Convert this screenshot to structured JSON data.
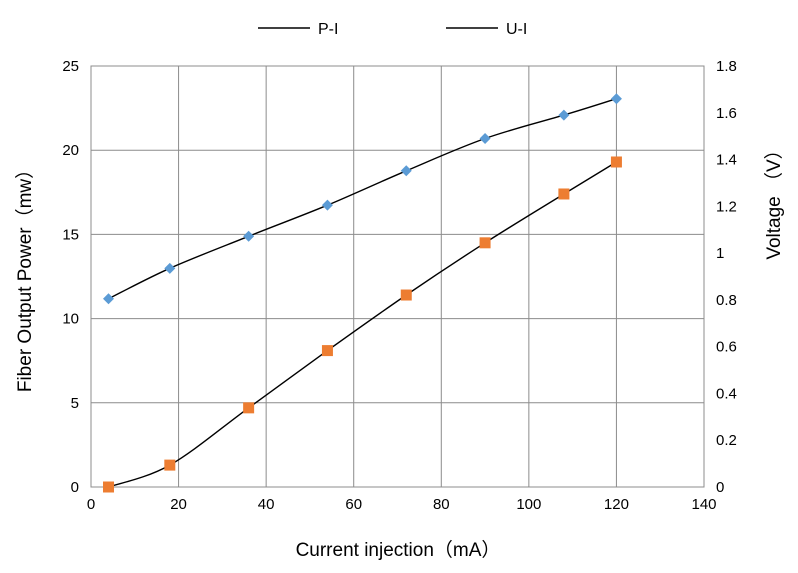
{
  "chart_data": {
    "type": "scatter",
    "title": "",
    "xlabel": "Current injection（mA）",
    "ylabel_left": "Fiber Output Power（mw）",
    "ylabel_right": "Voltage （V）",
    "xlim": [
      0,
      140
    ],
    "ylim_left": [
      0,
      25
    ],
    "ylim_right": [
      0,
      1.8
    ],
    "x_ticks": [
      "0",
      "20",
      "40",
      "60",
      "80",
      "100",
      "120",
      "140"
    ],
    "y_left_ticks": [
      "0",
      "5",
      "10",
      "15",
      "20",
      "25"
    ],
    "y_right_ticks": [
      "0",
      "0.2",
      "0.4",
      "0.6",
      "0.8",
      "1",
      "1.2",
      "1.4",
      "1.6",
      "1.8"
    ],
    "grid": true,
    "legend_position": "top",
    "legend": [
      "P-I",
      "U-I"
    ],
    "series": [
      {
        "name": "P-I",
        "axis": "left",
        "marker": "square",
        "color": "#ed7d31",
        "x": [
          4,
          18,
          36,
          54,
          72,
          90,
          108,
          120
        ],
        "y": [
          0,
          1.3,
          4.7,
          8.1,
          11.4,
          14.5,
          17.4,
          19.3
        ]
      },
      {
        "name": "U-I",
        "axis": "right",
        "marker": "diamond",
        "color": "#5b9bd5",
        "x": [
          4,
          18,
          36,
          54,
          72,
          90,
          108,
          120
        ],
        "y": [
          0.805,
          0.935,
          1.072,
          1.205,
          1.352,
          1.49,
          1.59,
          1.66
        ]
      }
    ]
  }
}
